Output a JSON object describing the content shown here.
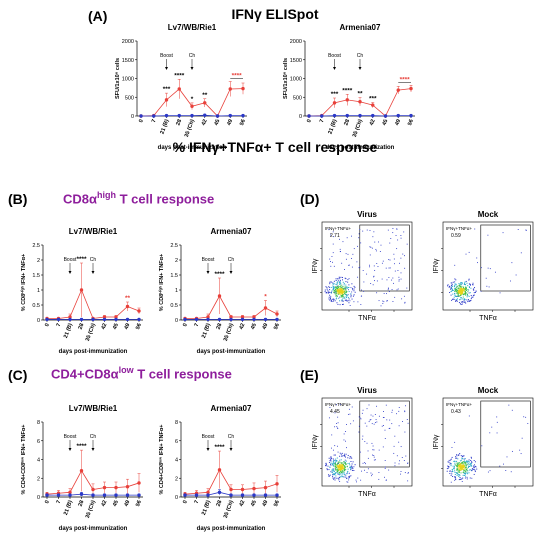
{
  "figure": {
    "title_A": "IFNγ ELISpot",
    "title_BC": "% IFNγ+TNFα+ T cell response",
    "sub_B": "CD8α",
    "sub_B_sup": "high",
    "sub_B_rest": " T cell response",
    "sub_C": "CD4+CD8α",
    "sub_C_sup": "low",
    "sub_C_rest": " T cell response",
    "panel_labels": [
      "(A)",
      "(B)",
      "(C)",
      "(D)",
      "(E)"
    ],
    "colors": {
      "virus": "#e8403a",
      "mock": "#2b38c7",
      "purple": "#8e1e9c"
    }
  },
  "chart_data": [
    {
      "id": "A1",
      "type": "line",
      "panel": "A",
      "title": "Lv7/WB/Rie1",
      "ylabel": "SFU/1x10⁶ cells",
      "xlabel": "days post-immunization",
      "x": [
        "0",
        "7",
        "21 (B)",
        "28",
        "35 (Ch)",
        "42",
        "45",
        "49",
        "56"
      ],
      "yticks": [
        0,
        500,
        1000,
        1500,
        2000
      ],
      "ylim": [
        0,
        2000
      ],
      "series": [
        {
          "values": [
            0,
            10,
            430,
            720,
            260,
            350,
            0,
            720,
            730
          ],
          "err": [
            0,
            10,
            180,
            260,
            90,
            110,
            0,
            200,
            150
          ]
        },
        {
          "values": [
            0,
            0,
            10,
            10,
            10,
            20,
            0,
            10,
            10
          ],
          "err": [
            0,
            0,
            5,
            5,
            5,
            5,
            0,
            5,
            5
          ]
        }
      ],
      "annotations": [
        {
          "x": "21 (B)",
          "text": "***"
        },
        {
          "x": "28",
          "text": "****"
        },
        {
          "x": "35 (Ch)",
          "text": "*"
        },
        {
          "x": "42",
          "text": "**"
        },
        {
          "x": "49-56",
          "text": "****",
          "color": "#e8403a"
        }
      ],
      "arrows": [
        {
          "x": "21 (B)",
          "text": "Boost"
        },
        {
          "x": "35 (Ch)",
          "text": "Ch"
        }
      ]
    },
    {
      "id": "A2",
      "type": "line",
      "panel": "A",
      "title": "Armenia07",
      "ylabel": "SFU/1x10⁶ cells",
      "xlabel": "days post-immunization",
      "x": [
        "0",
        "7",
        "21 (B)",
        "28",
        "35 (Ch)",
        "42",
        "45",
        "49",
        "56"
      ],
      "yticks": [
        0,
        500,
        1000,
        1500,
        2000
      ],
      "ylim": [
        0,
        2000
      ],
      "series": [
        {
          "values": [
            0,
            10,
            350,
            430,
            380,
            290,
            0,
            690,
            730
          ],
          "err": [
            0,
            10,
            130,
            150,
            110,
            70,
            0,
            100,
            90
          ]
        },
        {
          "values": [
            0,
            0,
            10,
            10,
            10,
            10,
            0,
            10,
            10
          ],
          "err": [
            0,
            0,
            5,
            5,
            5,
            5,
            0,
            5,
            5
          ]
        }
      ],
      "annotations": [
        {
          "x": "21 (B)",
          "text": "***"
        },
        {
          "x": "28",
          "text": "****"
        },
        {
          "x": "35 (Ch)",
          "text": "**"
        },
        {
          "x": "42",
          "text": "***"
        },
        {
          "x": "49-56",
          "text": "****",
          "color": "#e8403a"
        }
      ],
      "arrows": [
        {
          "x": "21 (B)",
          "text": "Boost"
        },
        {
          "x": "35 (Ch)",
          "text": "Ch"
        }
      ]
    },
    {
      "id": "B1",
      "type": "line",
      "panel": "B",
      "title": "Lv7/WB/Rie1",
      "ylabel": "% CD8ᴴⁱᵍʰ IFN+ TNFα+",
      "xlabel": "days post-immunization",
      "x": [
        "0",
        "7",
        "21 (B)",
        "28",
        "35 (Ch)",
        "42",
        "45",
        "49",
        "56"
      ],
      "yticks": [
        0,
        0.5,
        1.0,
        1.5,
        2.0,
        2.5
      ],
      "ylim": [
        0,
        2.5
      ],
      "series": [
        {
          "values": [
            0.05,
            0.05,
            0.1,
            1.0,
            0.05,
            0.1,
            0.1,
            0.45,
            0.3
          ],
          "err": [
            0.02,
            0.02,
            0.1,
            0.9,
            0.03,
            0.05,
            0.05,
            0.15,
            0.1
          ]
        },
        {
          "values": [
            0.02,
            0.02,
            0.02,
            0.02,
            0.02,
            0.02,
            0.02,
            0.02,
            0.02
          ],
          "err": [
            0.01,
            0.01,
            0.01,
            0.01,
            0.01,
            0.01,
            0.01,
            0.01,
            0.01
          ]
        }
      ],
      "annotations": [
        {
          "x": "28",
          "text": "****"
        },
        {
          "x": "49",
          "text": "**",
          "color": "#e8403a"
        }
      ],
      "arrows": [
        {
          "x": "21 (B)",
          "text": "Boost"
        },
        {
          "x": "35 (Ch)",
          "text": "Ch"
        }
      ]
    },
    {
      "id": "B2",
      "type": "line",
      "panel": "B",
      "title": "Armenia07",
      "ylabel": "% CD8ᴴⁱᵍʰ IFN+ TNFα+",
      "xlabel": "days post-immunization",
      "x": [
        "0",
        "7",
        "21 (B)",
        "28",
        "35 (Ch)",
        "42",
        "45",
        "49",
        "56"
      ],
      "yticks": [
        0,
        0.5,
        1.0,
        1.5,
        2.0,
        2.5
      ],
      "ylim": [
        0,
        2.5
      ],
      "series": [
        {
          "values": [
            0.05,
            0.05,
            0.1,
            0.8,
            0.1,
            0.1,
            0.1,
            0.4,
            0.2
          ],
          "err": [
            0.02,
            0.02,
            0.1,
            0.6,
            0.05,
            0.05,
            0.05,
            0.25,
            0.1
          ]
        },
        {
          "values": [
            0.02,
            0.02,
            0.02,
            0.02,
            0.02,
            0.02,
            0.02,
            0.02,
            0.02
          ],
          "err": [
            0.01,
            0.01,
            0.01,
            0.01,
            0.01,
            0.01,
            0.01,
            0.01,
            0.01
          ]
        }
      ],
      "annotations": [
        {
          "x": "28",
          "text": "****"
        },
        {
          "x": "49",
          "text": "*",
          "color": "#e8403a"
        }
      ],
      "arrows": [
        {
          "x": "21 (B)",
          "text": "Boost"
        },
        {
          "x": "35 (Ch)",
          "text": "Ch"
        }
      ]
    },
    {
      "id": "C1",
      "type": "line",
      "panel": "C",
      "title": "Lv7/WB/Rie1",
      "ylabel": "% CD4+CD8ˡᵒʷ IFN+ TNFα+",
      "xlabel": "days post-immunization",
      "x": [
        "0",
        "7",
        "21 (B)",
        "28",
        "35 (Ch)",
        "42",
        "45",
        "49",
        "56"
      ],
      "yticks": [
        0,
        2,
        4,
        6,
        8
      ],
      "ylim": [
        0,
        8
      ],
      "series": [
        {
          "values": [
            0.3,
            0.4,
            0.5,
            2.8,
            0.8,
            1.0,
            1.0,
            1.1,
            1.5
          ],
          "err": [
            0.2,
            0.3,
            0.4,
            2.2,
            0.6,
            0.6,
            0.6,
            0.8,
            1.0
          ]
        },
        {
          "values": [
            0.2,
            0.2,
            0.2,
            0.3,
            0.2,
            0.2,
            0.2,
            0.2,
            0.2
          ],
          "err": [
            0.1,
            0.1,
            0.1,
            0.2,
            0.1,
            0.1,
            0.1,
            0.1,
            0.1
          ]
        }
      ],
      "annotations": [
        {
          "x": "28",
          "text": "****"
        }
      ],
      "arrows": [
        {
          "x": "21 (B)",
          "text": "Boost"
        },
        {
          "x": "35 (Ch)",
          "text": "Ch"
        }
      ]
    },
    {
      "id": "C2",
      "type": "line",
      "panel": "C",
      "title": "Armenia07",
      "ylabel": "% CD4+CD8ˡᵒʷ IFN+ TNFα+",
      "xlabel": "days post-immunization",
      "x": [
        "0",
        "7",
        "21 (B)",
        "28",
        "35 (Ch)",
        "42",
        "45",
        "49",
        "56"
      ],
      "yticks": [
        0,
        2,
        4,
        6,
        8
      ],
      "ylim": [
        0,
        8
      ],
      "series": [
        {
          "values": [
            0.3,
            0.4,
            0.5,
            2.9,
            0.8,
            0.8,
            0.9,
            1.0,
            1.4
          ],
          "err": [
            0.2,
            0.3,
            0.4,
            2.0,
            0.5,
            0.5,
            0.6,
            0.7,
            0.9
          ]
        },
        {
          "values": [
            0.2,
            0.2,
            0.2,
            0.5,
            0.2,
            0.2,
            0.2,
            0.2,
            0.2
          ],
          "err": [
            0.1,
            0.1,
            0.1,
            0.3,
            0.1,
            0.1,
            0.1,
            0.1,
            0.1
          ]
        }
      ],
      "annotations": [
        {
          "x": "28",
          "text": "****"
        }
      ],
      "arrows": [
        {
          "x": "21 (B)",
          "text": "Boost"
        },
        {
          "x": "35 (Ch)",
          "text": "Ch"
        }
      ]
    },
    {
      "id": "D1",
      "type": "scatter",
      "panel": "D",
      "title": "Virus",
      "xlabel": "TNFα",
      "ylabel": "IFNγ",
      "gate_label": "IFNγ+TNFα+",
      "gate_value": "2.71"
    },
    {
      "id": "D2",
      "type": "scatter",
      "panel": "D",
      "title": "Mock",
      "xlabel": "TNFα",
      "ylabel": "IFNγ",
      "gate_label": "IFNγ+TNFα+",
      "gate_value": "0.59"
    },
    {
      "id": "E1",
      "type": "scatter",
      "panel": "E",
      "title": "Virus",
      "xlabel": "TNFα",
      "ylabel": "IFNγ",
      "gate_label": "IFNγ+TNFα+",
      "gate_value": "4.45"
    },
    {
      "id": "E2",
      "type": "scatter",
      "panel": "E",
      "title": "Mock",
      "xlabel": "TNFα",
      "ylabel": "IFNγ",
      "gate_label": "IFNγ+TNFα+",
      "gate_value": "0.43"
    }
  ]
}
